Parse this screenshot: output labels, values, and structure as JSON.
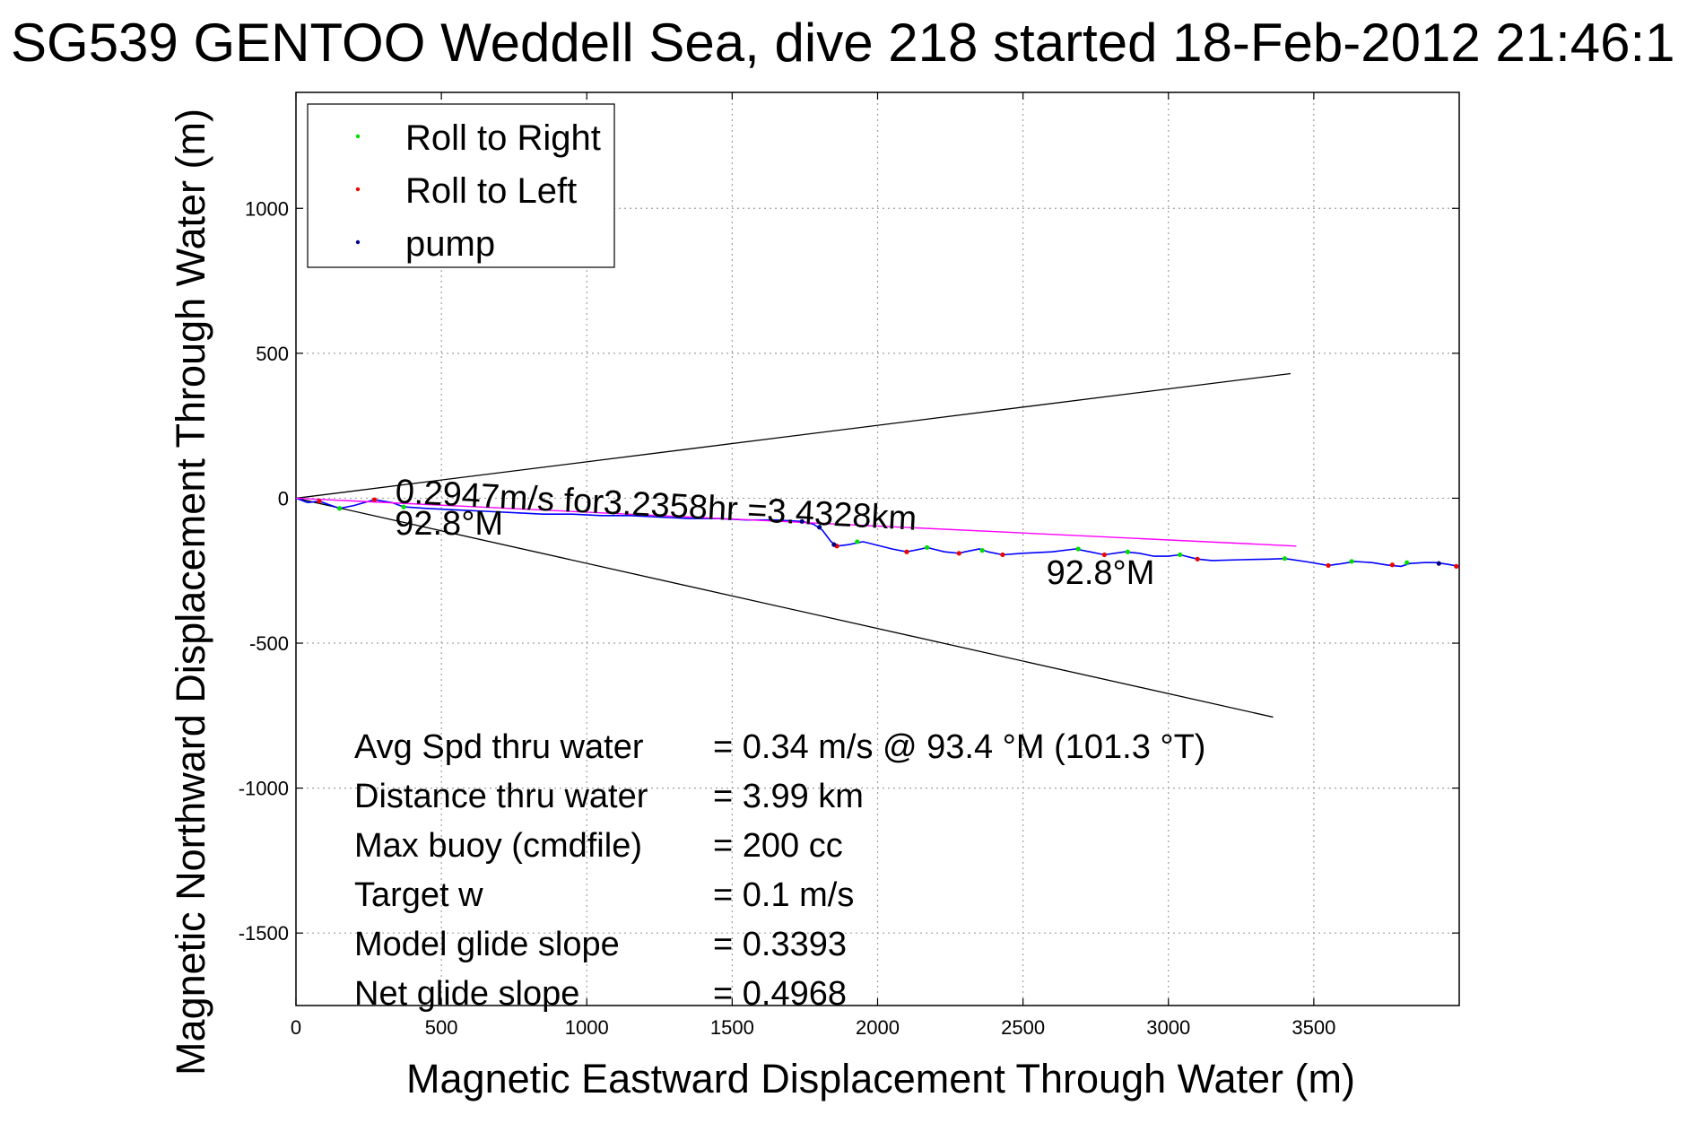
{
  "chart_data": {
    "type": "line",
    "title": "SG539 GENTOO Weddell Sea, dive 218 started 18-Feb-2012 21:46:1",
    "xlabel": "Magnetic Eastward Displacement Through Water (m)",
    "ylabel": "Magnetic Northward Displacement Through Water (m)",
    "xlim": [
      0,
      4000
    ],
    "ylim": [
      -1750,
      1400
    ],
    "xticks": [
      0,
      500,
      1000,
      1500,
      2000,
      2500,
      3000,
      3500
    ],
    "yticks": [
      1000,
      500,
      0,
      -500,
      -1000,
      -1500
    ],
    "grid": true,
    "legend_position": "top-left",
    "legend": [
      {
        "label": "Roll to Right",
        "color": "#00dd00"
      },
      {
        "label": "Roll to Left",
        "color": "#ee0000"
      },
      {
        "label": "pump",
        "color": "#000080"
      }
    ],
    "colors": {
      "track": "#0000ff",
      "avg_line": "#ff00ff",
      "cone": "#000000"
    },
    "track": {
      "x": [
        0,
        40,
        80,
        150,
        200,
        270,
        330,
        370,
        450,
        550,
        650,
        750,
        850,
        950,
        1050,
        1150,
        1250,
        1350,
        1450,
        1550,
        1650,
        1740,
        1780,
        1810,
        1840,
        1860,
        1900,
        1950,
        2050,
        2100,
        2150,
        2170,
        2230,
        2280,
        2300,
        2350,
        2380,
        2430,
        2500,
        2600,
        2680,
        2730,
        2780,
        2850,
        2900,
        2950,
        3000,
        3040,
        3100,
        3150,
        3250,
        3350,
        3400,
        3480,
        3550,
        3600,
        3640,
        3700,
        3750,
        3800,
        3830,
        3880,
        3920,
        3960,
        4000
      ],
      "y": [
        0,
        -15,
        -10,
        -35,
        -25,
        -5,
        -15,
        -30,
        -35,
        -40,
        -45,
        -50,
        -55,
        -55,
        -60,
        -60,
        -65,
        -70,
        -70,
        -75,
        -75,
        -80,
        -90,
        -110,
        -150,
        -165,
        -160,
        -150,
        -175,
        -185,
        -175,
        -170,
        -185,
        -190,
        -185,
        -175,
        -185,
        -195,
        -190,
        -185,
        -175,
        -185,
        -195,
        -185,
        -190,
        -200,
        -200,
        -195,
        -210,
        -215,
        -212,
        -210,
        -208,
        -220,
        -232,
        -225,
        -218,
        -222,
        -230,
        -235,
        -225,
        -222,
        -222,
        -228,
        -235
      ]
    },
    "roll_right": {
      "x": [
        150,
        370,
        1930,
        2170,
        2360,
        2690,
        2860,
        3040,
        3400,
        3630,
        3820
      ],
      "y": [
        -35,
        -30,
        -150,
        -170,
        -180,
        -175,
        -185,
        -195,
        -208,
        -218,
        -222
      ]
    },
    "roll_left": {
      "x": [
        80,
        270,
        1860,
        2100,
        2280,
        2430,
        2780,
        3100,
        3550,
        3770,
        3990
      ],
      "y": [
        -10,
        -5,
        -165,
        -185,
        -190,
        -195,
        -195,
        -210,
        -232,
        -230,
        -235
      ]
    },
    "pump": {
      "x": [
        1740,
        1800,
        1850,
        3930
      ],
      "y": [
        -80,
        -100,
        -160,
        -225
      ]
    },
    "avg_line": {
      "x": [
        0,
        3440
      ],
      "y": [
        0,
        -165
      ]
    },
    "cone_upper": {
      "x": [
        0,
        3420
      ],
      "y": [
        0,
        430
      ]
    },
    "cone_lower": {
      "x": [
        0,
        3360
      ],
      "y": [
        0,
        -755
      ]
    },
    "annotations": [
      {
        "text": "0.2947m/s for3.2358hr =3.4328km",
        "x": 340,
        "y": -15,
        "rotate": 3
      },
      {
        "text": "92.8°M",
        "x": 340,
        "y": -125,
        "rotate": 0
      },
      {
        "text": "92.8°M",
        "x": 2580,
        "y": -295,
        "rotate": 0
      }
    ],
    "stats": [
      {
        "label": "Avg Spd thru water",
        "value": "=  0.34 m/s @  93.4 °M (101.3 °T)"
      },
      {
        "label": "Distance thru water",
        "value": "=  3.99 km"
      },
      {
        "label": "Max buoy (cmdfile)",
        "value": "= 200 cc"
      },
      {
        "label": "Target w",
        "value": "= 0.1 m/s"
      },
      {
        "label": "Model glide slope",
        "value": "= 0.3393"
      },
      {
        "label": "Net glide slope",
        "value": "= 0.4968"
      }
    ]
  }
}
